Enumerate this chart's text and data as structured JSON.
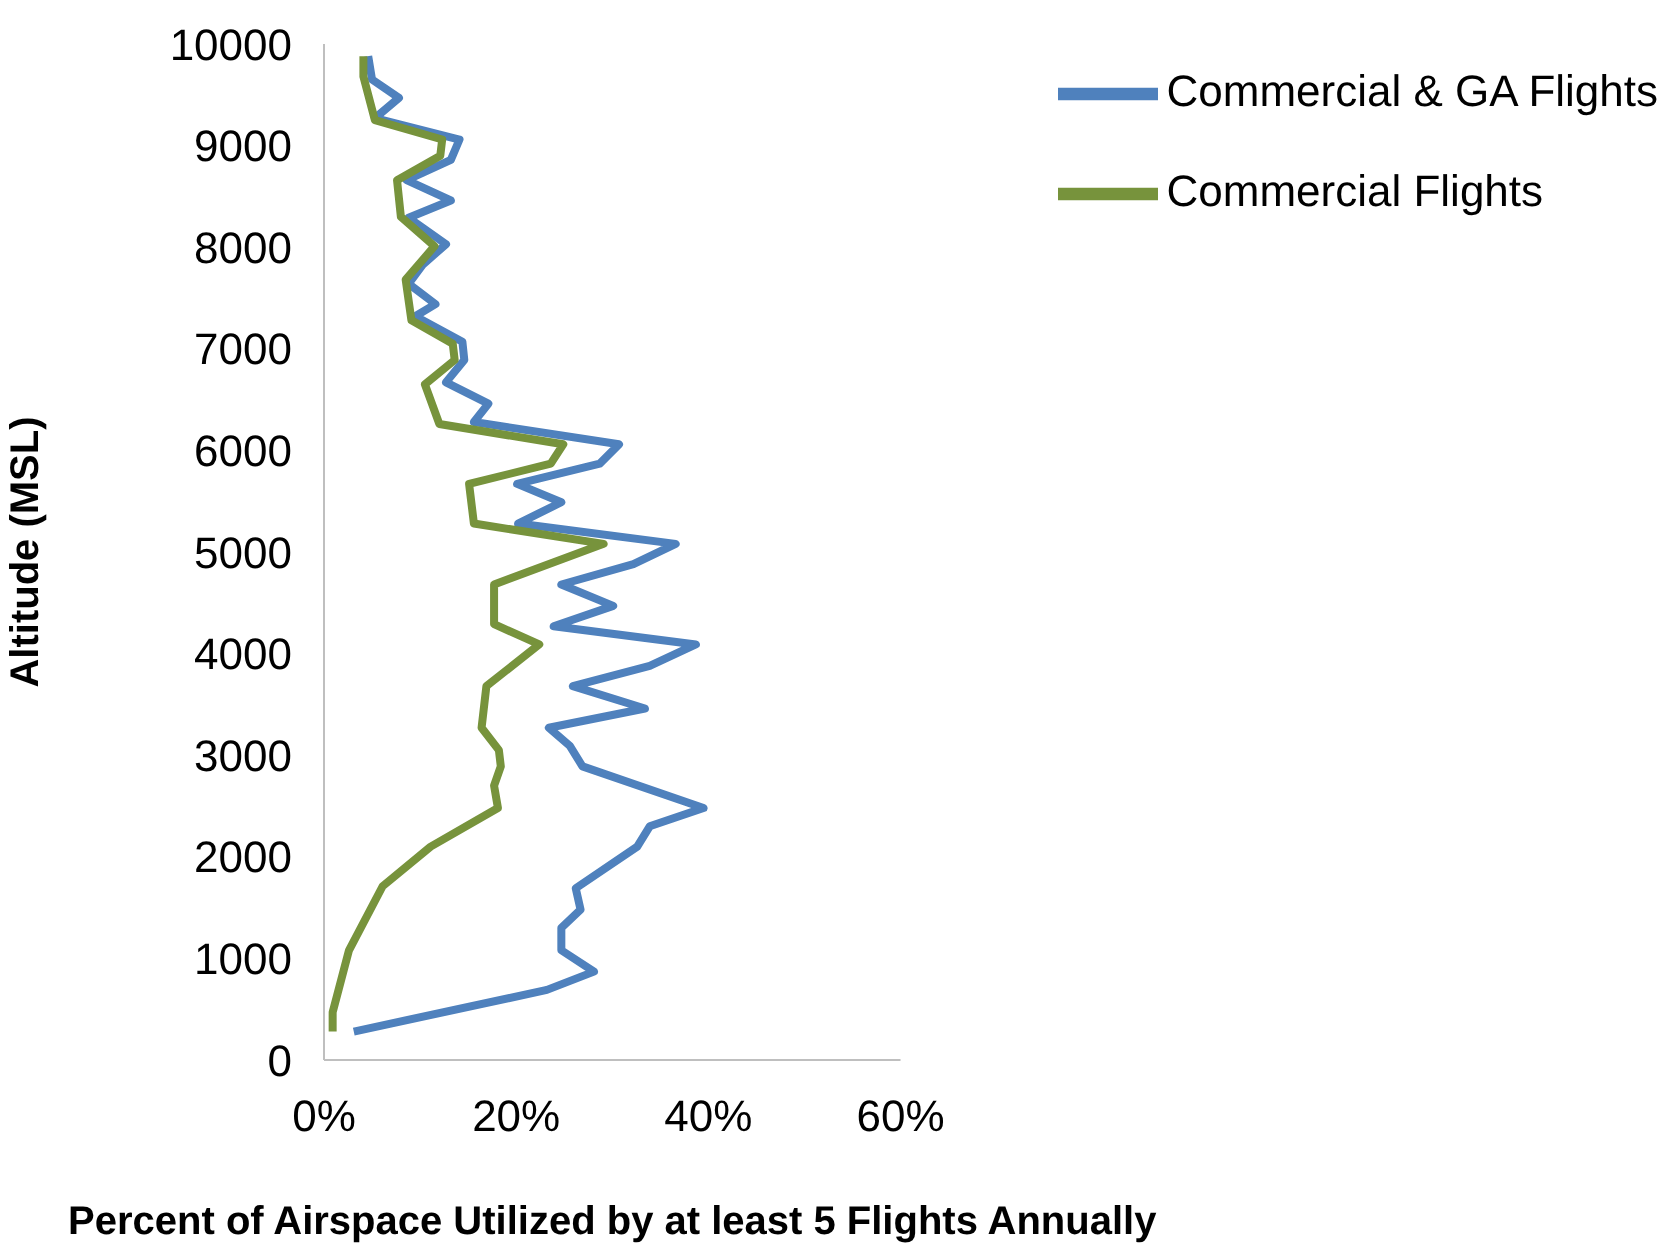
{
  "chart_data": {
    "type": "line",
    "xlabel": "Percent of Airspace Utilized by at least 5 Flights Annually",
    "ylabel": "Altitude (MSL)",
    "xlim": [
      0,
      60
    ],
    "xticks": [
      {
        "value": 0,
        "label": "0%"
      },
      {
        "value": 20,
        "label": "20%"
      },
      {
        "value": 40,
        "label": "40%"
      },
      {
        "value": 60,
        "label": "60%"
      }
    ],
    "ylim": [
      0,
      10000
    ],
    "yticks": [
      0,
      1000,
      2000,
      3000,
      4000,
      5000,
      6000,
      7000,
      8000,
      9000,
      10000
    ],
    "grid": false,
    "legend": "top right",
    "marker": "none",
    "line_style": "solid",
    "series": [
      {
        "name": "Commercial & GA Flights",
        "color": "#4f81bd",
        "x": [
          3.1,
          23.2,
          28.1,
          24.7,
          24.7,
          26.7,
          26.2,
          32.6,
          33.9,
          39.5,
          26.9,
          25.6,
          23.4,
          33.4,
          25.9,
          33.9,
          38.7,
          23.9,
          30.1,
          24.7,
          32.2,
          36.6,
          20.2,
          24.7,
          20.1,
          28.7,
          30.7,
          15.6,
          17.1,
          12.7,
          14.6,
          14.4,
          9.5,
          11.6,
          8.8,
          10.3,
          12.7,
          8.8,
          13.2,
          8.6,
          13.2,
          14.1,
          5.3,
          7.8,
          5.0,
          4.6
        ],
        "values": [
          280,
          690,
          870,
          1080,
          1300,
          1480,
          1690,
          2100,
          2300,
          2480,
          2890,
          3090,
          3270,
          3460,
          3680,
          3880,
          4090,
          4270,
          4470,
          4680,
          4880,
          5080,
          5280,
          5490,
          5670,
          5870,
          6060,
          6280,
          6460,
          6670,
          6890,
          7070,
          7320,
          7440,
          7640,
          7830,
          8030,
          8290,
          8460,
          8660,
          8860,
          9060,
          9270,
          9470,
          9650,
          9880
        ]
      },
      {
        "name": "Commercial Flights",
        "color": "#77933c",
        "x": [
          0.9,
          0.9,
          2.6,
          6.1,
          11.1,
          18.1,
          17.7,
          18.4,
          18.2,
          16.4,
          16.9,
          22.4,
          17.7,
          17.7,
          29.1,
          15.6,
          15.1,
          23.6,
          24.9,
          12.0,
          10.5,
          13.6,
          13.4,
          9.1,
          8.5,
          11.5,
          8.0,
          7.6,
          12.1,
          12.3,
          5.3,
          4.1,
          4.1
        ],
        "values": [
          280,
          470,
          1080,
          1710,
          2100,
          2480,
          2700,
          2890,
          3050,
          3270,
          3680,
          4090,
          4290,
          4680,
          5080,
          5280,
          5670,
          5870,
          6060,
          6260,
          6650,
          6890,
          7050,
          7280,
          7680,
          8010,
          8300,
          8660,
          8900,
          9060,
          9250,
          9680,
          9880
        ]
      }
    ]
  }
}
